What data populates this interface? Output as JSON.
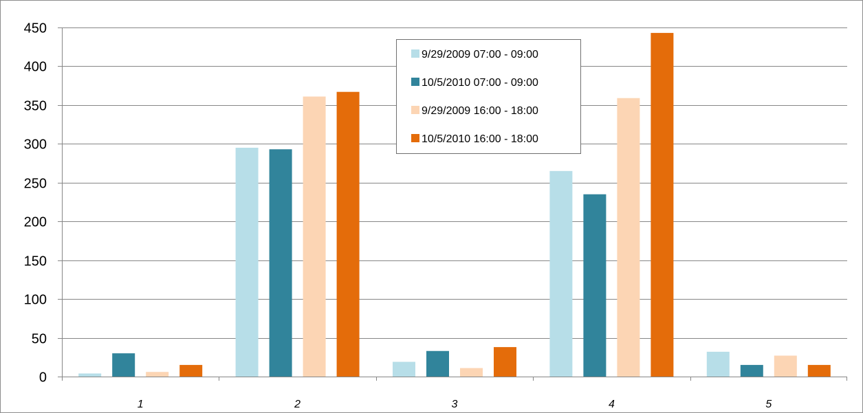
{
  "chart_data": {
    "type": "bar",
    "categories": [
      "1",
      "2",
      "3",
      "4",
      "5"
    ],
    "series": [
      {
        "name": "9/29/2009 07:00 - 09:00",
        "color": "#b7dee8",
        "values": [
          4,
          295,
          19,
          265,
          32
        ]
      },
      {
        "name": "10/5/2010 07:00 - 09:00",
        "color": "#31849b",
        "values": [
          30,
          293,
          33,
          235,
          15
        ]
      },
      {
        "name": "9/29/2009 16:00 - 18:00",
        "color": "#fcd5b4",
        "values": [
          6,
          361,
          11,
          359,
          27
        ]
      },
      {
        "name": "10/5/2010 16:00 - 18:00",
        "color": "#e46c0a",
        "values": [
          15,
          367,
          38,
          443,
          15
        ]
      }
    ],
    "ylim": [
      0,
      450
    ],
    "yticks": [
      0,
      50,
      100,
      150,
      200,
      250,
      300,
      350,
      400,
      450
    ],
    "grid": true,
    "legend_position": "top-center",
    "title": "",
    "xlabel": "",
    "ylabel": ""
  }
}
